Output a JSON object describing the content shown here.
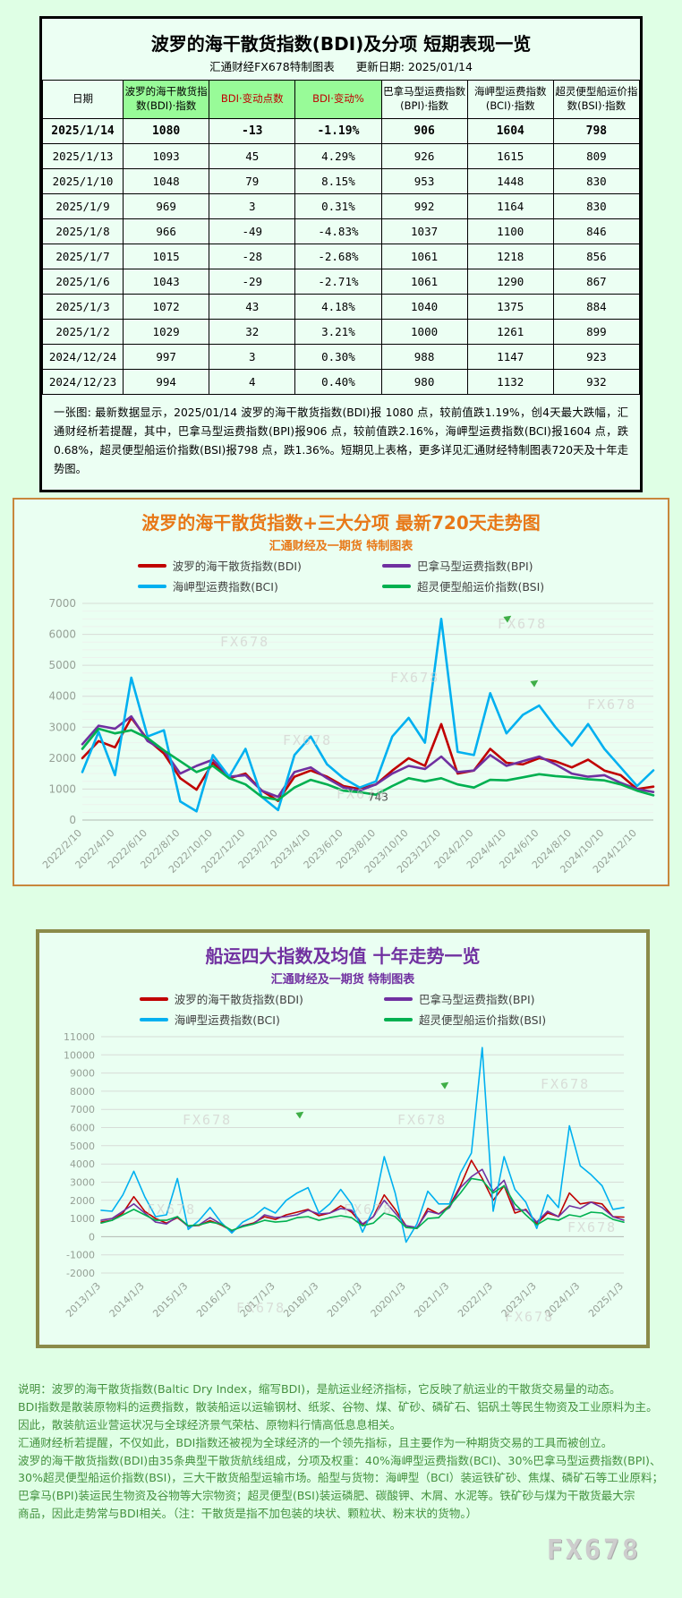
{
  "watermark": "FX678",
  "colors": {
    "page_bg": "#dfffe5",
    "table_header_green": "#98fb98",
    "bdi_red": "#c00000",
    "bpi_purple": "#7030a0",
    "bci_blue": "#00b0f0",
    "bsi_green": "#00b050",
    "title_720_orange": "#e87817",
    "title_10y_purple": "#7030a0"
  },
  "table_card": {
    "title": "波罗的海干散货指数(BDI)及分项 短期表现一览",
    "subtitle": "汇通财经FX678特制图表",
    "update_date": "更新日期: 2025/01/14",
    "columns": [
      "日期",
      "波罗的海干散货指数(BDI)·指数",
      "BDI·变动点数",
      "BDI·变动%",
      "巴拿马型运费指数(BPI)·指数",
      "海岬型运费指数(BCI)·指数",
      "超灵便型船运价指数(BSI)·指数"
    ],
    "rows": [
      [
        "2025/1/14",
        "1080",
        "-13",
        "-1.19%",
        "906",
        "1604",
        "798"
      ],
      [
        "2025/1/13",
        "1093",
        "45",
        "4.29%",
        "926",
        "1615",
        "809"
      ],
      [
        "2025/1/10",
        "1048",
        "79",
        "8.15%",
        "953",
        "1448",
        "830"
      ],
      [
        "2025/1/9",
        "969",
        "3",
        "0.31%",
        "992",
        "1164",
        "830"
      ],
      [
        "2025/1/8",
        "966",
        "-49",
        "-4.83%",
        "1037",
        "1100",
        "846"
      ],
      [
        "2025/1/7",
        "1015",
        "-28",
        "-2.68%",
        "1061",
        "1218",
        "856"
      ],
      [
        "2025/1/6",
        "1043",
        "-29",
        "-2.71%",
        "1061",
        "1290",
        "867"
      ],
      [
        "2025/1/3",
        "1072",
        "43",
        "4.18%",
        "1040",
        "1375",
        "884"
      ],
      [
        "2025/1/2",
        "1029",
        "32",
        "3.21%",
        "1000",
        "1261",
        "899"
      ],
      [
        "2024/12/24",
        "997",
        "3",
        "0.30%",
        "988",
        "1147",
        "923"
      ],
      [
        "2024/12/23",
        "994",
        "4",
        "0.40%",
        "980",
        "1132",
        "932"
      ]
    ],
    "note": "一张图: 最新数据显示，2025/01/14 波罗的海干散货指数(BDI)报 1080 点，较前值跌1.19%，创4天最大跌幅，汇通财经析若提醒，其中，巴拿马型运费指数(BPI)报906 点，较前值跌2.16%，海岬型运费指数(BCI)报1604 点，跌0.68%，超灵便型船运价指数(BSI)报798 点，跌1.36%。短期见上表格，更多详见汇通财经特制图表720天及十年走势图。"
  },
  "chart_data": [
    {
      "type": "line",
      "title": "波罗的海干散货指数+三大分项 最新720天走势图",
      "subtitle": "汇通财经及一期货 特制图表",
      "ylim": [
        0,
        7000
      ],
      "ytick_step": 1000,
      "minor_step": 250,
      "grid": true,
      "legend_position": "top",
      "x_ticks": [
        "2022/2/10",
        "2022/4/10",
        "2022/6/10",
        "2022/8/10",
        "2022/10/10",
        "2022/12/10",
        "2023/2/10",
        "2023/4/10",
        "2023/6/10",
        "2023/8/10",
        "2023/10/10",
        "2023/12/10",
        "2024/2/10",
        "2024/4/10",
        "2024/6/10",
        "2024/8/10",
        "2024/10/10",
        "2024/12/10"
      ],
      "x_tick_indices": [
        0,
        2,
        4,
        6,
        8,
        10,
        12,
        14,
        16,
        18,
        20,
        22,
        24,
        26,
        28,
        30,
        32,
        34
      ],
      "series": [
        {
          "name": "波罗的海干散货指数(BDI)",
          "color": "#c00000",
          "values": [
            2000,
            2550,
            2350,
            3300,
            2600,
            2150,
            1350,
            980,
            1850,
            1350,
            1500,
            950,
            620,
            1400,
            1600,
            1400,
            1100,
            1000,
            1150,
            1600,
            2000,
            1750,
            3100,
            1500,
            1600,
            2300,
            1850,
            1800,
            2000,
            1900,
            1700,
            1950,
            1600,
            1450,
            1000,
            1080
          ]
        },
        {
          "name": "巴拿马型运费指数(BPI)",
          "color": "#7030a0",
          "values": [
            2450,
            3050,
            2950,
            3350,
            2550,
            2250,
            1500,
            1750,
            1950,
            1400,
            1450,
            950,
            750,
            1550,
            1700,
            1350,
            1050,
            950,
            1150,
            1500,
            1750,
            1650,
            2050,
            1550,
            1600,
            2100,
            1750,
            1900,
            2050,
            1800,
            1500,
            1400,
            1450,
            1200,
            1000,
            906
          ]
        },
        {
          "name": "海岬型运费指数(BCI)",
          "color": "#00b0f0",
          "values": [
            1550,
            2850,
            1450,
            4600,
            2700,
            2900,
            600,
            280,
            2100,
            1400,
            2300,
            750,
            320,
            2100,
            2700,
            1800,
            1350,
            1050,
            1250,
            2700,
            3300,
            2500,
            6500,
            2200,
            2100,
            4100,
            2800,
            3400,
            3700,
            3000,
            2400,
            3100,
            2300,
            1700,
            1100,
            1604
          ]
        },
        {
          "name": "超灵便型船运价指数(BSI)",
          "color": "#00b050",
          "values": [
            2300,
            2950,
            2800,
            2900,
            2650,
            2250,
            1900,
            1550,
            1750,
            1350,
            1150,
            750,
            650,
            1050,
            1300,
            1150,
            950,
            900,
            820,
            1100,
            1350,
            1250,
            1350,
            1150,
            1050,
            1300,
            1280,
            1380,
            1480,
            1420,
            1380,
            1320,
            1280,
            1150,
            950,
            798
          ]
        }
      ],
      "annotations": [
        {
          "text": "743",
          "index": 17.5,
          "value": 620
        }
      ]
    },
    {
      "type": "line",
      "title": "船运四大指数及均值 十年走势一览",
      "subtitle": "汇通财经及一期货 特制图表",
      "ylim": [
        -2000,
        11000
      ],
      "ytick_step": 1000,
      "grid": true,
      "legend_position": "top",
      "x_ticks": [
        "2013/1/3",
        "2014/1/3",
        "2015/1/3",
        "2016/1/3",
        "2017/1/3",
        "2018/1/3",
        "2019/1/3",
        "2020/1/3",
        "2021/1/3",
        "2022/1/3",
        "2023/1/3",
        "2024/1/3",
        "2025/1/3"
      ],
      "x_tick_indices": [
        0,
        4,
        8,
        12,
        16,
        20,
        24,
        28,
        32,
        36,
        40,
        44,
        48
      ],
      "series": [
        {
          "name": "波罗的海干散货指数(BDI)",
          "color": "#c00000",
          "values": [
            800,
            900,
            1300,
            2200,
            1400,
            1000,
            750,
            1050,
            580,
            620,
            880,
            650,
            320,
            600,
            750,
            1100,
            950,
            1200,
            1350,
            1500,
            1150,
            1300,
            1700,
            1350,
            650,
            1100,
            2300,
            1500,
            600,
            450,
            1550,
            1250,
            1700,
            2800,
            4200,
            3200,
            2000,
            2800,
            1300,
            1500,
            700,
            1300,
            1100,
            2400,
            1800,
            1900,
            1800,
            1100,
            1080
          ]
        },
        {
          "name": "巴拿马型运费指数(BPI)",
          "color": "#7030a0",
          "values": [
            900,
            1000,
            1400,
            1800,
            1300,
            800,
            700,
            1100,
            550,
            650,
            1050,
            700,
            300,
            600,
            700,
            1200,
            1050,
            1100,
            1200,
            1450,
            1250,
            1300,
            1550,
            1450,
            700,
            1100,
            2000,
            1300,
            600,
            500,
            1400,
            1250,
            1600,
            2700,
            3300,
            3700,
            2500,
            3100,
            1500,
            1450,
            800,
            1400,
            1100,
            1700,
            1550,
            1900,
            1600,
            1100,
            906
          ]
        },
        {
          "name": "海岬型运费指数(BCI)",
          "color": "#00b0f0",
          "values": [
            1450,
            1400,
            2300,
            3600,
            2200,
            1100,
            1200,
            3200,
            400,
            900,
            1600,
            800,
            200,
            800,
            1100,
            1600,
            1300,
            2000,
            2400,
            2700,
            1300,
            1800,
            2600,
            1800,
            250,
            1500,
            4400,
            2400,
            -300,
            700,
            2500,
            1800,
            1800,
            3500,
            4600,
            10400,
            1400,
            4400,
            2600,
            1900,
            450,
            2300,
            1600,
            6100,
            3900,
            3400,
            2800,
            1500,
            1604
          ]
        },
        {
          "name": "超灵便型船运价指数(BSI)",
          "color": "#00b050",
          "values": [
            750,
            900,
            1200,
            1500,
            1200,
            900,
            900,
            1100,
            600,
            650,
            800,
            700,
            350,
            550,
            700,
            900,
            800,
            850,
            1050,
            1100,
            900,
            1050,
            1150,
            1050,
            600,
            750,
            1300,
            1100,
            500,
            450,
            1000,
            1050,
            1700,
            2400,
            3200,
            3100,
            2400,
            2800,
            1800,
            1200,
            650,
            1000,
            900,
            1200,
            1100,
            1350,
            1300,
            950,
            798
          ]
        }
      ],
      "annotations": []
    }
  ],
  "footer": {
    "lines": [
      "说明：波罗的海干散货指数(Baltic Dry Index，缩写BDI)，是航运业经济指标，它反映了航运业的干散货交易量的动态。",
      "BDI指数是散装原物料的运费指数，散装船运以运输钢材、纸浆、谷物、煤、矿砂、磷矿石、铝矾土等民生物资及工业原料为主。",
      "因此，散装航运业营运状况与全球经济景气荣枯、原物料行情高低息息相关。",
      "汇通财经析若提醒，不仅如此，BDI指数还被视为全球经济的一个领先指标，且主要作为一种期货交易的工具而被创立。",
      "波罗的海干散货指数(BDI)由35条典型干散货航线组成，分项及权重：40%海岬型运费指数(BCI)、30%巴拿马型运费指数(BPI)、",
      "30%超灵便型船运价指数(BSI)，三大干散货船型运输市场。船型与货物：海岬型（BCI）装运铁矿砂、焦煤、磷矿石等工业原料；",
      "巴拿马(BPI)装运民生物资及谷物等大宗物资；超灵便型(BSI)装运磷肥、碳酸钾、木屑、水泥等。铁矿砂与煤为干散货最大宗",
      "商品，因此走势常与BDI相关。（注：干散货是指不加包装的块状、颗粒状、粉末状的货物。）"
    ]
  }
}
